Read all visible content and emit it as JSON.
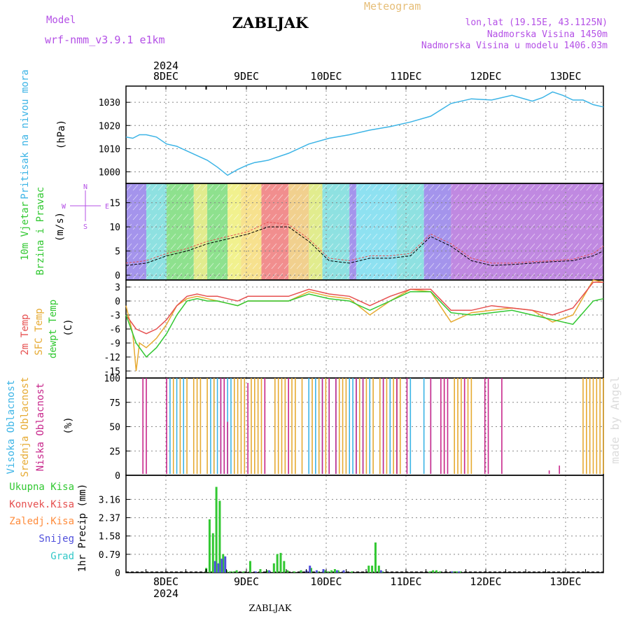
{
  "header": {
    "model_label": "Model",
    "model_name": "wrf-nmm_v3.9.1 e1km",
    "station": "ZABLJAK",
    "meteogram_label": "Meteogram",
    "lonlat": "lon,lat (19.15E, 43.1125N)",
    "elevation": "Nadmorska Visina 1450m",
    "model_elevation": "Nadmorska Visina u modelu 1406.03m",
    "signature": "made by Angel"
  },
  "top_axis": {
    "year": "2024",
    "days": [
      "8DEC",
      "9DEC",
      "10DEC",
      "11DEC",
      "12DEC",
      "13DEC"
    ]
  },
  "bottom_axis": {
    "days": [
      "8DEC",
      "9DEC",
      "10DEC",
      "11DEC",
      "12DEC",
      "13DEC"
    ],
    "year": "2024"
  },
  "bottom_title": "ZABLJAK",
  "colors": {
    "pressure": "#3cb4e6",
    "temp2m": "#e65050",
    "sfc": "#e6aa32",
    "dewpt": "#32c832",
    "high_cloud": "#3cb4e6",
    "mid_cloud": "#e6aa32",
    "low_cloud": "#c8288c",
    "total_precip": "#32c832",
    "conv_precip": "#e65050",
    "frozen_precip": "#ff8c3c",
    "snow": "#5050dc",
    "graupel": "#32c8c8",
    "compass": "#b450e6"
  },
  "chart_data": [
    {
      "type": "line",
      "panel": "pressure",
      "ylabel": "Pritisak na nivou mora",
      "unit": "(hPa)",
      "yticks": [
        1000,
        1010,
        1020,
        1030
      ],
      "ylim": [
        995,
        1037
      ],
      "xlim": [
        0,
        141
      ],
      "x_unit": "hours from 2024-12-07 12:00",
      "series": [
        {
          "key": "pressure",
          "x": [
            0,
            2,
            4,
            6,
            9,
            12,
            15,
            18,
            21,
            24,
            27,
            30,
            33,
            36,
            38,
            40,
            42,
            44,
            48,
            54,
            60,
            66,
            72,
            78,
            84,
            90,
            96,
            102,
            108,
            114,
            120,
            123,
            126,
            129,
            132,
            135,
            138,
            141
          ],
          "values": [
            1015,
            1014.5,
            1016,
            1016,
            1015,
            1012,
            1011,
            1009,
            1007,
            1005,
            1002,
            998.5,
            1001,
            1003,
            1004,
            1004.5,
            1005,
            1006,
            1008,
            1012,
            1014.5,
            1016,
            1018,
            1019.5,
            1021.5,
            1024,
            1029.5,
            1031.5,
            1031,
            1033,
            1030.5,
            1032,
            1034.5,
            1033,
            1031,
            1031,
            1029,
            1028
          ]
        }
      ]
    },
    {
      "type": "line",
      "panel": "wind",
      "ylabel": "10m Vjetar Brzina i Pravac",
      "unit": "(m/s)",
      "yticks": [
        0,
        5,
        10,
        15
      ],
      "ylim": [
        -1,
        19
      ],
      "xlim": [
        0,
        141
      ],
      "compass": {
        "n": "N",
        "e": "E",
        "s": "S",
        "w": "W"
      },
      "wind_color_bands": [
        {
          "x0": 0,
          "x1": 6,
          "color": "#5a3cdc"
        },
        {
          "x0": 6,
          "x1": 12,
          "color": "#32c8c8"
        },
        {
          "x0": 12,
          "x1": 20,
          "color": "#32c832"
        },
        {
          "x0": 20,
          "x1": 24,
          "color": "#c8dc32"
        },
        {
          "x0": 24,
          "x1": 30,
          "color": "#32c832"
        },
        {
          "x0": 30,
          "x1": 34,
          "color": "#e6e632"
        },
        {
          "x0": 34,
          "x1": 40,
          "color": "#f0c832"
        },
        {
          "x0": 40,
          "x1": 48,
          "color": "#e63232"
        },
        {
          "x0": 48,
          "x1": 54,
          "color": "#e6aa32"
        },
        {
          "x0": 54,
          "x1": 58,
          "color": "#c8dc32"
        },
        {
          "x0": 58,
          "x1": 66,
          "color": "#32c8c8"
        },
        {
          "x0": 66,
          "x1": 68,
          "color": "#5a3cdc"
        },
        {
          "x0": 68,
          "x1": 80,
          "color": "#32c8e6"
        },
        {
          "x0": 80,
          "x1": 88,
          "color": "#32c8c8"
        },
        {
          "x0": 88,
          "x1": 96,
          "color": "#5a3cdc"
        },
        {
          "x0": 96,
          "x1": 141,
          "color": "#8c28c8"
        }
      ],
      "series": [
        {
          "key": "speed",
          "x": [
            0,
            6,
            12,
            18,
            24,
            30,
            36,
            42,
            48,
            54,
            60,
            66,
            72,
            78,
            84,
            90,
            96,
            102,
            108,
            114,
            120,
            126,
            132,
            138,
            141
          ],
          "values": [
            2,
            2.5,
            4,
            5,
            6.5,
            7.5,
            8.5,
            10,
            10,
            7,
            3,
            2.5,
            3.5,
            3.5,
            4,
            8,
            6,
            3,
            2,
            2.2,
            2.5,
            2.8,
            3,
            4,
            5
          ]
        },
        {
          "key": "gust",
          "x": [
            0,
            6,
            12,
            18,
            24,
            30,
            36,
            42,
            48,
            54,
            60,
            66,
            72,
            78,
            84,
            90,
            96,
            102,
            108,
            114,
            120,
            126,
            132,
            138,
            141
          ],
          "values": [
            2.5,
            3,
            4.5,
            5.5,
            7,
            8,
            9,
            11,
            10.5,
            7.5,
            3.5,
            3,
            4,
            4,
            4.5,
            8.5,
            6.5,
            3.5,
            2.5,
            2.5,
            2.8,
            3,
            3.3,
            4.5,
            6
          ]
        }
      ]
    },
    {
      "type": "line",
      "panel": "temperature",
      "ylabel": [
        "2m Temp",
        "SFC Temp",
        "dewpt Temp"
      ],
      "unit": "(C)",
      "yticks": [
        3,
        0,
        -3,
        -6,
        -9,
        -12,
        -15
      ],
      "ylim": [
        -16.5,
        4.5
      ],
      "xlim": [
        0,
        141
      ],
      "series": [
        {
          "key": "temp2m",
          "x": [
            0,
            3,
            6,
            9,
            12,
            15,
            18,
            21,
            24,
            27,
            30,
            33,
            36,
            42,
            48,
            54,
            60,
            66,
            72,
            78,
            84,
            90,
            96,
            102,
            108,
            114,
            120,
            126,
            132,
            138,
            141
          ],
          "values": [
            -3,
            -6,
            -7,
            -6,
            -4,
            -1,
            1,
            1.5,
            1,
            1,
            0.5,
            0,
            1,
            1,
            1,
            2.5,
            1.5,
            1,
            -1,
            1,
            2.5,
            2.5,
            -2,
            -2,
            -1,
            -1.5,
            -2,
            -3,
            -1.5,
            4,
            4
          ]
        },
        {
          "key": "sfc",
          "x": [
            0,
            2,
            3,
            4,
            6,
            9,
            12,
            15,
            18,
            21,
            24,
            27,
            30,
            33,
            36,
            42,
            48,
            54,
            60,
            66,
            72,
            78,
            84,
            90,
            96,
            102,
            108,
            114,
            120,
            126,
            132,
            138,
            141
          ],
          "values": [
            -1,
            -7,
            -15,
            -9,
            -10,
            -8,
            -5,
            -1,
            0.5,
            1,
            0.5,
            0,
            -0.5,
            -1,
            0,
            0,
            0,
            2,
            1,
            0.5,
            -3,
            0,
            2.5,
            2,
            -4.5,
            -2.5,
            -2,
            -1.5,
            -2,
            -4.5,
            -3,
            4.5,
            4
          ]
        },
        {
          "key": "dewpt",
          "x": [
            0,
            3,
            6,
            9,
            12,
            15,
            18,
            21,
            24,
            27,
            30,
            33,
            36,
            42,
            48,
            54,
            60,
            66,
            72,
            78,
            84,
            90,
            96,
            102,
            108,
            114,
            120,
            126,
            132,
            138,
            141
          ],
          "values": [
            -3,
            -9,
            -12,
            -10,
            -7,
            -3,
            0,
            0.5,
            0,
            0,
            -0.5,
            -1,
            0,
            0,
            0,
            1.5,
            0.5,
            0,
            -2,
            0,
            2,
            2,
            -2.5,
            -3,
            -2.5,
            -2,
            -3,
            -4,
            -5,
            0,
            0.5
          ]
        }
      ]
    },
    {
      "type": "bar",
      "panel": "clouds",
      "ylabel": [
        "Visoka Oblacnost",
        "Srednja Oblacnost",
        "Niska Oblacnost"
      ],
      "unit": "(%)",
      "yticks": [
        0,
        25,
        50,
        75,
        100
      ],
      "ylim": [
        0,
        100
      ],
      "xlim": [
        0,
        141
      ],
      "series": [
        {
          "key": "high_cloud",
          "x": [
            13,
            15,
            17,
            25,
            26,
            27,
            28,
            29,
            30,
            31,
            54,
            56,
            58,
            60,
            62,
            66,
            67,
            68,
            70,
            72,
            76,
            78,
            80,
            84,
            88,
            90
          ],
          "values": [
            100,
            100,
            100,
            100,
            100,
            100,
            100,
            50,
            100,
            100,
            100,
            100,
            100,
            100,
            100,
            100,
            100,
            100,
            100,
            100,
            100,
            100,
            100,
            100,
            100,
            100
          ]
        },
        {
          "key": "mid_cloud",
          "x": [
            14,
            16,
            18,
            20,
            21,
            22,
            24,
            26,
            32,
            33,
            34,
            35,
            37,
            38,
            39,
            40,
            41,
            44,
            45,
            46,
            47,
            49,
            50,
            52,
            55,
            57,
            59,
            63,
            64,
            65,
            69,
            71,
            73,
            75,
            77,
            79,
            80,
            81,
            94,
            97,
            98,
            99,
            100,
            101,
            102,
            135,
            136,
            137,
            138,
            139,
            140,
            141
          ],
          "values": [
            100,
            100,
            100,
            100,
            100,
            100,
            100,
            100,
            100,
            100,
            100,
            100,
            100,
            100,
            100,
            100,
            100,
            100,
            100,
            100,
            100,
            100,
            100,
            100,
            100,
            100,
            100,
            100,
            100,
            100,
            100,
            100,
            100,
            100,
            100,
            100,
            100,
            100,
            100,
            100,
            100,
            100,
            100,
            100,
            100,
            100,
            100,
            100,
            100,
            100,
            100,
            100
          ]
        },
        {
          "key": "low_cloud",
          "x": [
            5,
            6,
            12,
            28,
            29,
            30,
            36,
            41,
            48,
            58,
            60,
            62,
            68,
            70,
            76,
            80,
            83,
            90,
            93,
            94,
            95,
            100,
            106,
            107,
            111,
            125,
            128
          ],
          "values": [
            100,
            100,
            100,
            100,
            100,
            55,
            95,
            100,
            100,
            100,
            100,
            100,
            100,
            100,
            100,
            100,
            100,
            100,
            100,
            100,
            100,
            100,
            100,
            100,
            100,
            5,
            10
          ]
        }
      ]
    },
    {
      "type": "bar",
      "panel": "precipitation",
      "ylabel": "1hr Precip",
      "unit": "(mm)",
      "legend": [
        "Ukupna Kisa",
        "Konvek.Kisa",
        "Zaledj.Kisa",
        "Snijeg",
        "Grad"
      ],
      "yticks": [
        "0",
        "0.79",
        "1.58",
        "2.37",
        "3.16"
      ],
      "ylim": [
        0,
        4.2
      ],
      "xlim": [
        0,
        141
      ],
      "series": [
        {
          "key": "total_precip",
          "x": [
            24,
            25,
            26,
            27,
            28,
            29,
            30,
            31,
            32,
            33,
            35,
            37,
            40,
            42,
            44,
            45,
            46,
            47,
            48,
            50,
            52,
            55,
            57,
            59,
            60,
            61,
            62,
            63,
            67,
            72,
            73,
            74,
            75,
            76,
            90,
            91,
            92,
            93,
            97,
            98,
            99
          ],
          "values": [
            0.2,
            2.3,
            1.7,
            3.7,
            3.1,
            0.8,
            0.1,
            0.05,
            0.05,
            0.1,
            0.05,
            0.5,
            0.15,
            0.1,
            0.4,
            0.8,
            0.85,
            0.5,
            0.1,
            0.05,
            0.1,
            0.2,
            0.05,
            0.1,
            0.05,
            0.1,
            0.15,
            0.1,
            0.05,
            0.3,
            0.3,
            1.3,
            0.3,
            0.05,
            0.05,
            0.1,
            0.1,
            0.05,
            0.05,
            0.05,
            0.05
          ]
        },
        {
          "key": "snow",
          "x": [
            26,
            27,
            28,
            29,
            38,
            42,
            53,
            54,
            56,
            58,
            62,
            64,
            75,
            96,
            98
          ],
          "values": [
            0.5,
            0.4,
            0.6,
            0.7,
            0.05,
            0.1,
            0.1,
            0.3,
            0.1,
            0.15,
            0.1,
            0.1,
            0.1,
            0.05,
            0.05
          ]
        }
      ]
    }
  ]
}
